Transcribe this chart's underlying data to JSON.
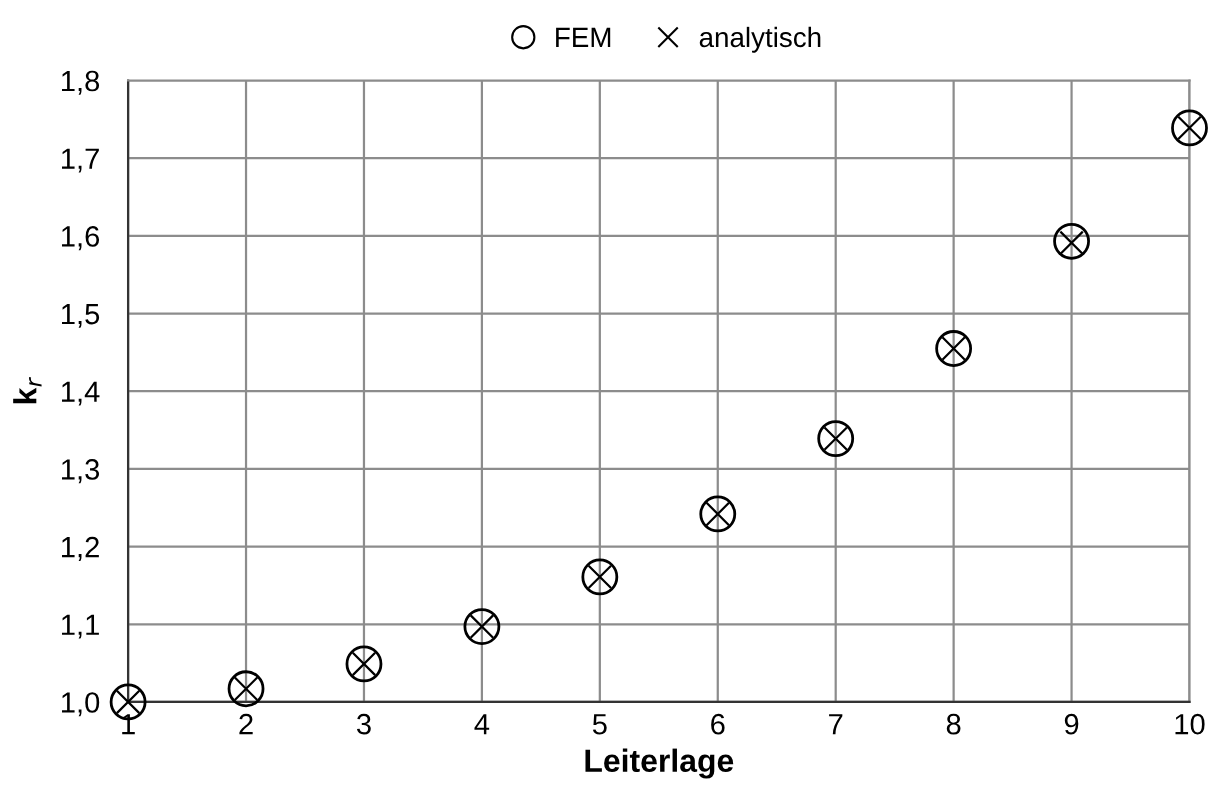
{
  "chart_data": {
    "type": "scatter",
    "xlabel": "Leiterlage",
    "ylabel": "k$_{r}$",
    "x": [
      1,
      2,
      3,
      4,
      5,
      6,
      7,
      8,
      9,
      10
    ],
    "series": [
      {
        "name": "FEM",
        "color": "#000000",
        "marker": "circle",
        "values": [
          1.0,
          1.017,
          1.049,
          1.097,
          1.161,
          1.242,
          1.339,
          1.455,
          1.593,
          1.739
        ]
      },
      {
        "name": "analytisch",
        "color": "#000000",
        "marker": "cross",
        "values": [
          1.0,
          1.017,
          1.049,
          1.097,
          1.161,
          1.242,
          1.339,
          1.455,
          1.591,
          1.739
        ]
      }
    ],
    "xlim": [
      1,
      10
    ],
    "xticks": [
      1,
      2,
      3,
      4,
      5,
      6,
      7,
      8,
      9,
      10
    ],
    "ylim": [
      1.0,
      1.8
    ],
    "yticks": [
      {
        "value": 1.0,
        "label": "1,0"
      },
      {
        "value": 1.1,
        "label": "1,1"
      },
      {
        "value": 1.2,
        "label": "1,2"
      },
      {
        "value": 1.3,
        "label": "1,3"
      },
      {
        "value": 1.4,
        "label": "1,4"
      },
      {
        "value": 1.5,
        "label": "1,5"
      },
      {
        "value": 1.6,
        "label": "1,6"
      },
      {
        "value": 1.7,
        "label": "1,7"
      },
      {
        "value": 1.8,
        "label": "1,8"
      }
    ],
    "grid": true,
    "legend": "top"
  }
}
